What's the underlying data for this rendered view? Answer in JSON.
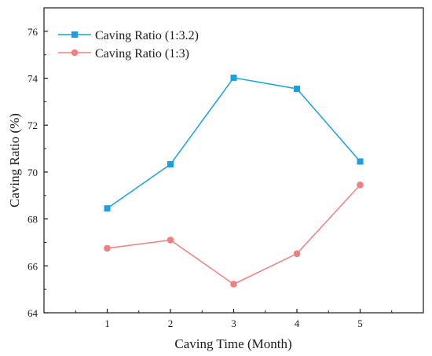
{
  "chart_data": {
    "type": "line",
    "xlabel": "Caving Time (Month)",
    "ylabel": "Caving Ratio (%)",
    "x": [
      1,
      2,
      3,
      4,
      5
    ],
    "x_ticks": [
      "1",
      "2",
      "3",
      "4",
      "5"
    ],
    "xlim": [
      0,
      6
    ],
    "y_ticks": [
      "64",
      "66",
      "68",
      "70",
      "72",
      "74",
      "76"
    ],
    "ylim": [
      64,
      77
    ],
    "grid": false,
    "legend_position": "top-left",
    "series": [
      {
        "name": "Caving Ratio (1:3.2)",
        "values": [
          68.45,
          70.33,
          74.02,
          73.55,
          70.45
        ],
        "color": "#1a9fe0",
        "marker": "square"
      },
      {
        "name": "Caving Ratio (1:3)",
        "values": [
          66.75,
          67.1,
          65.22,
          66.52,
          69.45
        ],
        "color": "#f08080",
        "marker": "circle"
      }
    ]
  }
}
